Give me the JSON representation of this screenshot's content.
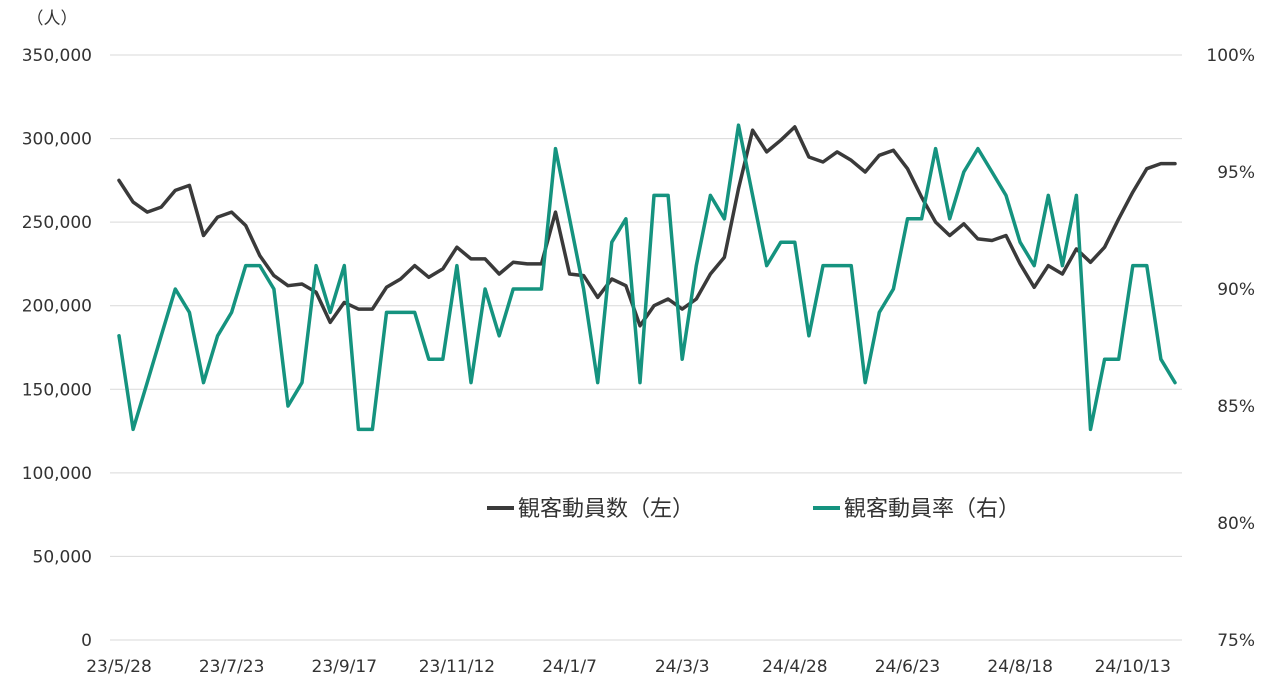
{
  "chart_data": {
    "type": "line",
    "unit_left": "（人）",
    "x_tick_labels": [
      "23/5/28",
      "23/7/23",
      "23/9/17",
      "23/11/12",
      "24/1/7",
      "24/3/3",
      "24/4/28",
      "24/6/23",
      "24/8/18",
      "24/10/13"
    ],
    "y_left": {
      "ticks": [
        "0",
        "50,000",
        "100,000",
        "150,000",
        "200,000",
        "250,000",
        "300,000",
        "350,000"
      ],
      "ylim": [
        0,
        350000
      ]
    },
    "y_right": {
      "ticks": [
        "75%",
        "80%",
        "85%",
        "90%",
        "95%",
        "100%"
      ],
      "ylim": [
        75,
        100
      ]
    },
    "legend": {
      "placement": "center"
    },
    "series": [
      {
        "name": "観客動員数（左）",
        "axis": "left",
        "color": "#3a3a3a",
        "values": [
          275000,
          262000,
          256000,
          259000,
          269000,
          272000,
          242000,
          253000,
          256000,
          248000,
          230000,
          218000,
          212000,
          213000,
          208000,
          190000,
          202000,
          198000,
          198000,
          211000,
          216000,
          224000,
          217000,
          222000,
          235000,
          228000,
          228000,
          219000,
          226000,
          225000,
          225000,
          256000,
          219000,
          218000,
          205000,
          216000,
          212000,
          188000,
          200000,
          204000,
          198000,
          204000,
          219000,
          229000,
          270000,
          305000,
          292000,
          299000,
          307000,
          289000,
          286000,
          292000,
          287000,
          280000,
          290000,
          293000,
          282000,
          265000,
          250000,
          242000,
          249000,
          240000,
          239000,
          242000,
          225000,
          211000,
          224000,
          219000,
          234000,
          226000,
          235000,
          252000,
          268000,
          282000,
          285000,
          285000
        ]
      },
      {
        "name": "観客動員率（右）",
        "axis": "right",
        "color": "#15937f",
        "values": [
          88,
          84,
          86,
          88,
          90,
          89,
          86,
          88,
          89,
          91,
          91,
          90,
          85,
          86,
          91,
          89,
          91,
          84,
          84,
          89,
          89,
          89,
          87,
          87,
          91,
          86,
          90,
          88,
          90,
          90,
          90,
          96,
          93,
          90,
          86,
          92,
          93,
          86,
          94,
          94,
          87,
          91,
          94,
          93,
          97,
          94,
          91,
          92,
          92,
          88,
          91,
          91,
          91,
          86,
          89,
          90,
          93,
          93,
          96,
          93,
          95,
          96,
          95,
          94,
          92,
          91,
          94,
          91,
          94,
          84,
          87,
          87,
          91,
          91,
          87,
          86
        ]
      }
    ]
  }
}
